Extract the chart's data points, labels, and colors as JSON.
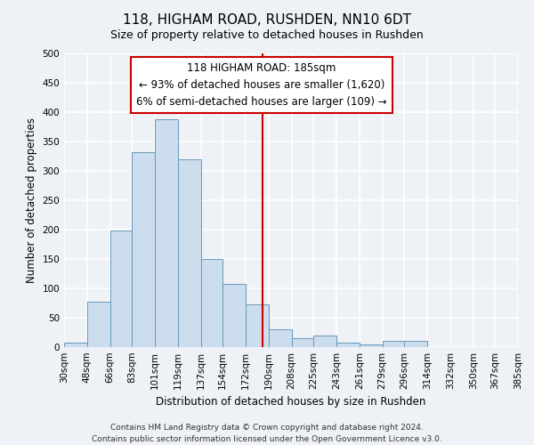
{
  "title": "118, HIGHAM ROAD, RUSHDEN, NN10 6DT",
  "subtitle": "Size of property relative to detached houses in Rushden",
  "xlabel": "Distribution of detached houses by size in Rushden",
  "ylabel": "Number of detached properties",
  "bin_labels": [
    "30sqm",
    "48sqm",
    "66sqm",
    "83sqm",
    "101sqm",
    "119sqm",
    "137sqm",
    "154sqm",
    "172sqm",
    "190sqm",
    "208sqm",
    "225sqm",
    "243sqm",
    "261sqm",
    "279sqm",
    "296sqm",
    "314sqm",
    "332sqm",
    "350sqm",
    "367sqm",
    "385sqm"
  ],
  "bin_edges": [
    30,
    48,
    66,
    83,
    101,
    119,
    137,
    154,
    172,
    190,
    208,
    225,
    243,
    261,
    279,
    296,
    314,
    332,
    350,
    367,
    385
  ],
  "bar_heights": [
    8,
    77,
    198,
    332,
    388,
    320,
    150,
    108,
    73,
    30,
    15,
    20,
    7,
    5,
    10,
    11,
    0,
    0,
    0,
    0
  ],
  "bar_color": "#ccdded",
  "bar_edge_color": "#6699bb",
  "vline_x": 185,
  "vline_color": "#cc0000",
  "annotation_title": "118 HIGHAM ROAD: 185sqm",
  "annotation_line1": "← 93% of detached houses are smaller (1,620)",
  "annotation_line2": "6% of semi-detached houses are larger (109) →",
  "annotation_box_facecolor": "#ffffff",
  "annotation_box_edgecolor": "#cc0000",
  "ylim": [
    0,
    500
  ],
  "yticks": [
    0,
    50,
    100,
    150,
    200,
    250,
    300,
    350,
    400,
    450,
    500
  ],
  "footer1": "Contains HM Land Registry data © Crown copyright and database right 2024.",
  "footer2": "Contains public sector information licensed under the Open Government Licence v3.0.",
  "bg_color": "#eef2f7",
  "grid_color": "#ffffff",
  "title_fontsize": 11,
  "subtitle_fontsize": 9,
  "axis_label_fontsize": 8.5,
  "tick_fontsize": 7.5,
  "annotation_fontsize": 8.5,
  "footer_fontsize": 6.5
}
